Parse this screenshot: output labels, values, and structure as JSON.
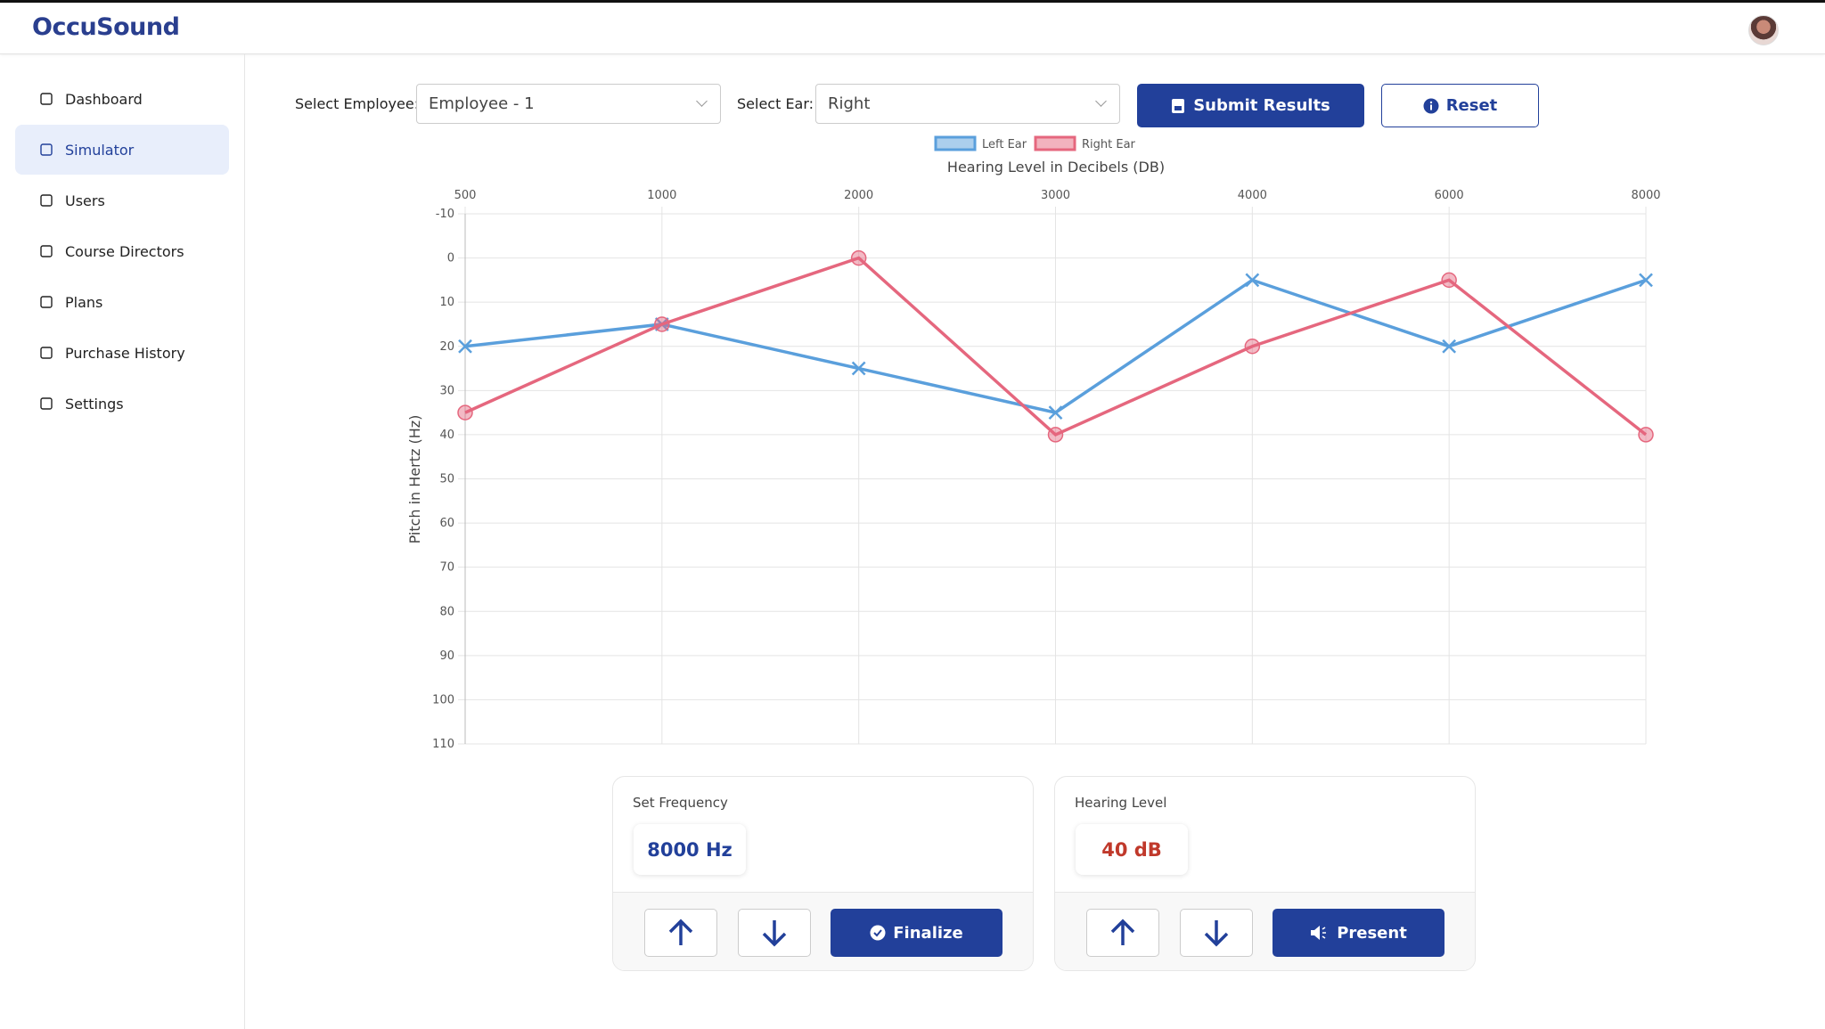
{
  "header": {
    "logo": "OccuSound"
  },
  "sidebar": {
    "items": [
      "Dashboard",
      "Simulator",
      "Users",
      "Course Directors",
      "Plans",
      "Purchase History",
      "Settings"
    ]
  },
  "controls": {
    "employee_label": "Select Employee:",
    "employee_value": "Employee - 1",
    "ear_label": "Select Ear:",
    "ear_value": "Right",
    "submit": "Submit Results",
    "reset": "Reset"
  },
  "chart_data": {
    "type": "line",
    "x_title": "Hearing Level in Decibels (DB)",
    "y_title": "Pitch in Hertz (Hz)",
    "categories": [
      "500",
      "1000",
      "2000",
      "3000",
      "4000",
      "6000",
      "8000"
    ],
    "series": [
      {
        "name": "Left Ear",
        "color": "#5a9fdc",
        "marker": "x",
        "values": [
          20,
          15,
          25,
          35,
          5,
          20,
          5
        ]
      },
      {
        "name": "Right Ear",
        "color": "#e5677e",
        "marker": "circle",
        "values": [
          35,
          15,
          0,
          40,
          20,
          5,
          40
        ]
      }
    ],
    "ylim": [
      -10,
      110
    ],
    "y_reversed": true,
    "yticks": [
      -10,
      0,
      10,
      20,
      30,
      40,
      50,
      60,
      70,
      80,
      90,
      100,
      110
    ],
    "grid": true,
    "legend": "top"
  },
  "panels": [
    {
      "title": "Set Frequency",
      "value": "8000 Hz",
      "action": "Finalize"
    },
    {
      "title": "Hearing Level",
      "value": "40 dB",
      "action": "Present"
    }
  ]
}
